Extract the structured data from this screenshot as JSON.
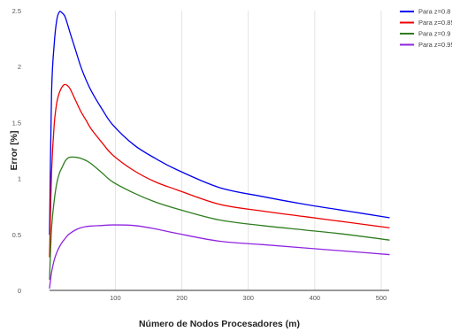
{
  "chart_data": {
    "type": "line",
    "title": "",
    "xlabel": "Número de Nodos Procesadores (m)",
    "ylabel": "Error [%]",
    "xlim": [
      1,
      512
    ],
    "ylim": [
      0,
      2.5
    ],
    "xticks": [
      100,
      200,
      300,
      400,
      500
    ],
    "xtick_labels": [
      "100",
      "200",
      "300",
      "400",
      "500"
    ],
    "yticks": [
      0,
      0.5,
      1,
      1.5,
      2,
      2.5
    ],
    "ytick_labels": [
      "0",
      "0.5",
      "1",
      "1.5",
      "2",
      "2.5"
    ],
    "grid": "vertical",
    "legend_position": "top-right",
    "x": [
      1,
      4,
      8,
      12,
      16,
      20,
      24,
      28,
      32,
      40,
      48,
      56,
      64,
      80,
      96,
      128,
      160,
      192,
      256,
      320,
      384,
      448,
      512
    ],
    "series": [
      {
        "name": "Para z=0.8",
        "color": "#0000ee",
        "values": [
          0.5,
          1.75,
          2.2,
          2.42,
          2.49,
          2.48,
          2.45,
          2.38,
          2.3,
          2.15,
          2.0,
          1.88,
          1.78,
          1.62,
          1.48,
          1.3,
          1.18,
          1.08,
          0.92,
          0.84,
          0.77,
          0.71,
          0.65
        ]
      },
      {
        "name": "Para z=0.85",
        "color": "#ee0000",
        "values": [
          0.3,
          1.05,
          1.48,
          1.68,
          1.77,
          1.82,
          1.84,
          1.83,
          1.8,
          1.7,
          1.6,
          1.52,
          1.44,
          1.32,
          1.21,
          1.07,
          0.97,
          0.9,
          0.77,
          0.71,
          0.66,
          0.61,
          0.56
        ]
      },
      {
        "name": "Para z=0.9",
        "color": "#2e7d1e",
        "values": [
          0.1,
          0.55,
          0.8,
          0.96,
          1.05,
          1.1,
          1.15,
          1.18,
          1.19,
          1.19,
          1.18,
          1.16,
          1.13,
          1.05,
          0.97,
          0.87,
          0.79,
          0.73,
          0.63,
          0.58,
          0.54,
          0.5,
          0.45
        ]
      },
      {
        "name": "Para z=0.95",
        "color": "#8e24e0",
        "values": [
          0.02,
          0.16,
          0.27,
          0.34,
          0.39,
          0.43,
          0.46,
          0.49,
          0.51,
          0.54,
          0.56,
          0.57,
          0.575,
          0.58,
          0.585,
          0.58,
          0.55,
          0.51,
          0.44,
          0.41,
          0.38,
          0.35,
          0.32
        ]
      }
    ]
  }
}
